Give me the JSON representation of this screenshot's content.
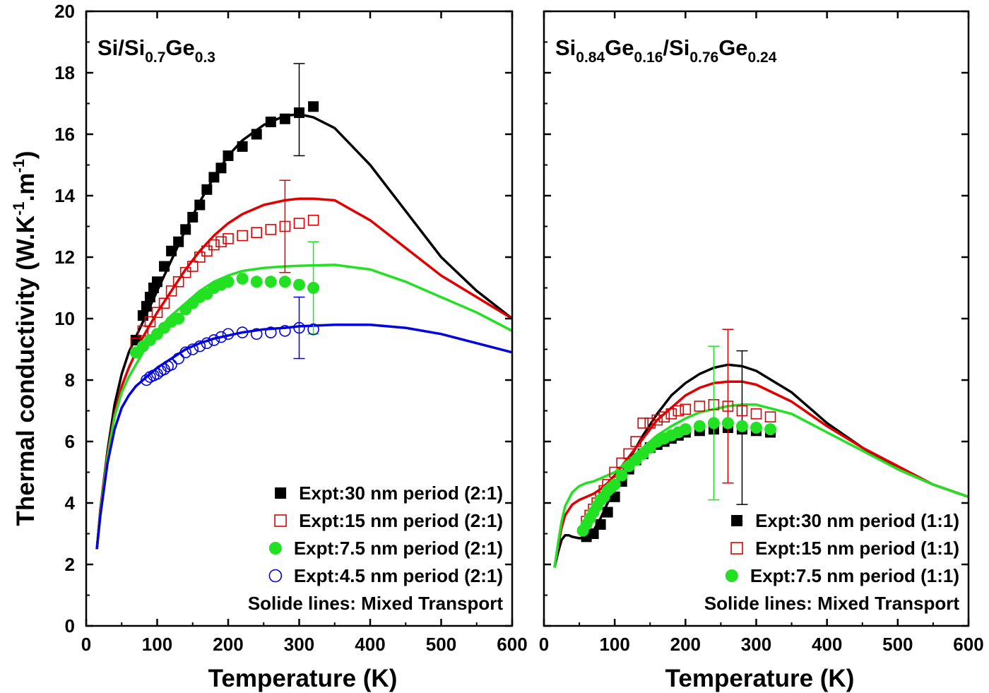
{
  "chart_data": [
    {
      "type": "scatter",
      "title_parts": [
        {
          "text": "Si/Si",
          "sub": false
        },
        {
          "text": "0.7",
          "sub": true
        },
        {
          "text": "Ge",
          "sub": false
        },
        {
          "text": "0.3",
          "sub": true
        }
      ],
      "xlabel": "Temperature (K)",
      "ylabel": "Thermal conductivity (W.K-1.m-1)",
      "ylabel_parts": [
        {
          "text": "Thermal conductivity (W.K",
          "sup": false
        },
        {
          "text": "-1",
          "sup": true
        },
        {
          "text": ".m",
          "sup": false
        },
        {
          "text": "-1",
          "sup": true
        },
        {
          "text": ")",
          "sup": false
        }
      ],
      "xlim": [
        0,
        600
      ],
      "ylim": [
        0,
        20
      ],
      "xticks": [
        0,
        100,
        200,
        300,
        400,
        500,
        600
      ],
      "yticks": [
        0,
        2,
        4,
        6,
        8,
        10,
        12,
        14,
        16,
        18,
        20
      ],
      "legend_position": "bottom-right",
      "legend_note": "Solide lines: Mixed Transport",
      "series": [
        {
          "name": "Expt:30  nm period (2:1)",
          "marker": "square-filled",
          "color": "#000000",
          "x": [
            70,
            80,
            85,
            90,
            95,
            100,
            110,
            120,
            130,
            140,
            150,
            160,
            170,
            180,
            190,
            200,
            220,
            240,
            260,
            280,
            300,
            320
          ],
          "y": [
            9.3,
            10.1,
            10.4,
            10.7,
            11.0,
            11.2,
            11.7,
            12.2,
            12.5,
            12.9,
            13.3,
            13.7,
            14.2,
            14.6,
            14.9,
            15.3,
            15.6,
            16.0,
            16.4,
            16.5,
            16.7,
            16.9
          ],
          "errorbars": [
            {
              "x": 300,
              "low": 15.3,
              "high": 18.3
            }
          ]
        },
        {
          "name": "Expt:15  nm period (2:1)",
          "marker": "square-open",
          "color": "#e00000",
          "x": [
            70,
            80,
            90,
            100,
            110,
            120,
            130,
            140,
            150,
            160,
            170,
            180,
            190,
            200,
            220,
            240,
            260,
            280,
            300,
            320
          ],
          "y": [
            9.2,
            9.6,
            9.9,
            10.2,
            10.5,
            10.9,
            11.2,
            11.5,
            11.7,
            12.0,
            12.2,
            12.4,
            12.5,
            12.6,
            12.7,
            12.8,
            12.9,
            13.0,
            13.1,
            13.2
          ],
          "errorbars": [
            {
              "x": 280,
              "low": 11.5,
              "high": 14.5
            }
          ]
        },
        {
          "name": "Expt:7.5 nm period (2:1)",
          "marker": "circle-filled",
          "color": "#22e022",
          "x": [
            70,
            80,
            90,
            100,
            110,
            120,
            130,
            140,
            150,
            160,
            170,
            180,
            190,
            200,
            220,
            240,
            260,
            280,
            300,
            320
          ],
          "y": [
            8.9,
            9.1,
            9.3,
            9.5,
            9.7,
            9.9,
            10.0,
            10.3,
            10.5,
            10.7,
            10.8,
            11.0,
            11.1,
            11.2,
            11.3,
            11.2,
            11.2,
            11.2,
            11.1,
            11.0
          ],
          "errorbars": [
            {
              "x": 320,
              "low": 9.5,
              "high": 12.5
            }
          ]
        },
        {
          "name": "Expt:4.5 nm period (2:1)",
          "marker": "circle-open",
          "color": "#0000e0",
          "x": [
            85,
            90,
            95,
            100,
            105,
            110,
            115,
            120,
            130,
            140,
            150,
            160,
            170,
            180,
            190,
            200,
            220,
            240,
            260,
            280,
            300,
            320
          ],
          "y": [
            8.0,
            8.1,
            8.15,
            8.2,
            8.3,
            8.35,
            8.45,
            8.5,
            8.7,
            8.9,
            9.0,
            9.1,
            9.2,
            9.3,
            9.4,
            9.5,
            9.55,
            9.5,
            9.55,
            9.6,
            9.7,
            9.65
          ],
          "errorbars": [
            {
              "x": 300,
              "low": 8.7,
              "high": 10.7
            }
          ]
        },
        {
          "name": "Mixed transport 30 nm",
          "style": "line",
          "color": "#000000",
          "x": [
            15,
            20,
            30,
            40,
            50,
            60,
            70,
            80,
            90,
            100,
            120,
            140,
            160,
            180,
            200,
            220,
            250,
            280,
            300,
            320,
            350,
            400,
            450,
            500,
            550,
            600
          ],
          "y": [
            2.5,
            3.8,
            5.7,
            7.2,
            8.2,
            8.9,
            9.4,
            9.9,
            10.4,
            10.9,
            11.9,
            12.9,
            13.8,
            14.6,
            15.3,
            15.8,
            16.3,
            16.6,
            16.65,
            16.55,
            16.2,
            15.0,
            13.5,
            12.0,
            10.9,
            10.0
          ]
        },
        {
          "name": "Mixed transport 15 nm",
          "style": "line",
          "color": "#e00000",
          "x": [
            15,
            20,
            30,
            40,
            50,
            60,
            70,
            80,
            90,
            100,
            120,
            140,
            160,
            180,
            200,
            220,
            250,
            280,
            300,
            320,
            350,
            400,
            450,
            500,
            550,
            600
          ],
          "y": [
            2.5,
            3.8,
            5.6,
            6.9,
            7.8,
            8.4,
            8.9,
            9.4,
            9.8,
            10.2,
            10.9,
            11.6,
            12.2,
            12.7,
            13.1,
            13.4,
            13.7,
            13.85,
            13.9,
            13.9,
            13.85,
            13.2,
            12.3,
            11.4,
            10.7,
            10.0
          ]
        },
        {
          "name": "Mixed transport 7.5 nm",
          "style": "line",
          "color": "#22e022",
          "x": [
            15,
            20,
            30,
            40,
            50,
            60,
            70,
            80,
            90,
            100,
            120,
            140,
            160,
            180,
            200,
            220,
            250,
            280,
            300,
            350,
            400,
            450,
            500,
            550,
            600
          ],
          "y": [
            2.5,
            3.7,
            5.5,
            6.8,
            7.6,
            8.1,
            8.5,
            8.9,
            9.3,
            9.6,
            10.1,
            10.5,
            10.9,
            11.2,
            11.4,
            11.55,
            11.65,
            11.7,
            11.72,
            11.75,
            11.6,
            11.2,
            10.7,
            10.2,
            9.6
          ]
        },
        {
          "name": "Mixed transport 4.5 nm",
          "style": "line",
          "color": "#0000e0",
          "x": [
            15,
            20,
            30,
            40,
            50,
            60,
            70,
            80,
            90,
            100,
            120,
            140,
            160,
            180,
            200,
            220,
            250,
            280,
            300,
            350,
            400,
            450,
            500,
            550,
            600
          ],
          "y": [
            2.5,
            3.6,
            5.3,
            6.4,
            7.1,
            7.5,
            7.8,
            8.0,
            8.2,
            8.4,
            8.7,
            9.0,
            9.2,
            9.35,
            9.45,
            9.55,
            9.65,
            9.7,
            9.75,
            9.8,
            9.8,
            9.7,
            9.5,
            9.2,
            8.9
          ]
        }
      ]
    },
    {
      "type": "scatter",
      "title_parts": [
        {
          "text": "Si",
          "sub": false
        },
        {
          "text": "0.84",
          "sub": true
        },
        {
          "text": "Ge",
          "sub": false
        },
        {
          "text": "0.16",
          "sub": true
        },
        {
          "text": "/Si",
          "sub": false
        },
        {
          "text": "0.76",
          "sub": true
        },
        {
          "text": "Ge",
          "sub": false
        },
        {
          "text": "0.24",
          "sub": true
        }
      ],
      "xlabel": "Temperature (K)",
      "xlim": [
        0,
        600
      ],
      "ylim": [
        0,
        20
      ],
      "xticks": [
        0,
        100,
        200,
        300,
        400,
        500,
        600
      ],
      "legend_position": "bottom-right",
      "legend_note": "Solide lines: Mixed Transport",
      "series": [
        {
          "name": "Expt:30  nm period (1:1)",
          "marker": "square-filled",
          "color": "#000000",
          "x": [
            60,
            70,
            80,
            90,
            100,
            110,
            120,
            130,
            140,
            150,
            160,
            170,
            180,
            190,
            200,
            220,
            240,
            260,
            280,
            300,
            320
          ],
          "y": [
            2.9,
            3.0,
            3.3,
            3.7,
            4.2,
            4.7,
            5.1,
            5.4,
            5.6,
            5.8,
            5.9,
            6.0,
            6.1,
            6.2,
            6.3,
            6.35,
            6.4,
            6.45,
            6.4,
            6.35,
            6.3
          ],
          "errorbars": [
            {
              "x": 280,
              "low": 3.95,
              "high": 8.95
            }
          ]
        },
        {
          "name": "Expt:15  nm period (1:1)",
          "marker": "square-open",
          "color": "#e00000",
          "x": [
            60,
            65,
            70,
            75,
            80,
            85,
            90,
            100,
            110,
            120,
            130,
            140,
            150,
            160,
            170,
            180,
            190,
            200,
            220,
            240,
            260,
            280,
            300,
            320
          ],
          "y": [
            3.4,
            3.6,
            3.8,
            4.0,
            4.2,
            4.4,
            4.6,
            5.0,
            5.3,
            5.6,
            6.0,
            6.6,
            6.6,
            6.7,
            6.8,
            6.9,
            7.0,
            7.05,
            7.15,
            7.2,
            7.15,
            7.0,
            6.9,
            6.8
          ],
          "errorbars": [
            {
              "x": 260,
              "low": 4.65,
              "high": 9.65
            }
          ]
        },
        {
          "name": "Expt:7.5 nm period (1:1)",
          "marker": "circle-filled",
          "color": "#22e022",
          "x": [
            55,
            60,
            65,
            70,
            75,
            80,
            85,
            90,
            95,
            100,
            110,
            120,
            130,
            140,
            150,
            160,
            170,
            180,
            190,
            200,
            220,
            240,
            260,
            280,
            300,
            320
          ],
          "y": [
            3.1,
            3.3,
            3.5,
            3.7,
            3.9,
            4.1,
            4.2,
            4.4,
            4.5,
            4.6,
            4.9,
            5.2,
            5.4,
            5.6,
            5.8,
            6.0,
            6.1,
            6.2,
            6.3,
            6.4,
            6.5,
            6.6,
            6.6,
            6.5,
            6.45,
            6.4
          ],
          "errorbars": [
            {
              "x": 240,
              "low": 4.1,
              "high": 9.1
            }
          ]
        },
        {
          "name": "Mixed transport 30 nm",
          "style": "line",
          "color": "#000000",
          "x": [
            15,
            20,
            25,
            30,
            35,
            40,
            50,
            60,
            70,
            80,
            90,
            100,
            120,
            140,
            160,
            180,
            200,
            220,
            240,
            260,
            280,
            300,
            350,
            400,
            450,
            500,
            550,
            600
          ],
          "y": [
            1.9,
            2.4,
            2.8,
            2.95,
            2.95,
            2.9,
            2.85,
            2.9,
            3.1,
            3.5,
            4.0,
            4.5,
            5.4,
            6.2,
            6.9,
            7.5,
            7.9,
            8.2,
            8.4,
            8.5,
            8.45,
            8.3,
            7.6,
            6.6,
            5.8,
            5.1,
            4.6,
            4.2
          ]
        },
        {
          "name": "Mixed transport 15 nm",
          "style": "line",
          "color": "#e00000",
          "x": [
            15,
            20,
            25,
            30,
            40,
            50,
            60,
            70,
            80,
            90,
            100,
            120,
            140,
            160,
            180,
            200,
            220,
            240,
            260,
            280,
            300,
            350,
            400,
            450,
            500,
            550,
            600
          ],
          "y": [
            1.9,
            2.6,
            3.2,
            3.6,
            3.95,
            4.1,
            4.2,
            4.3,
            4.45,
            4.65,
            4.9,
            5.5,
            6.1,
            6.7,
            7.1,
            7.5,
            7.75,
            7.9,
            7.95,
            7.95,
            7.85,
            7.3,
            6.5,
            5.8,
            5.2,
            4.6,
            4.2
          ]
        },
        {
          "name": "Mixed transport 7.5 nm",
          "style": "line",
          "color": "#22e022",
          "x": [
            15,
            20,
            25,
            30,
            40,
            50,
            60,
            70,
            80,
            90,
            100,
            120,
            140,
            160,
            180,
            200,
            220,
            240,
            260,
            280,
            300,
            350,
            400,
            450,
            500,
            550,
            600
          ],
          "y": [
            1.9,
            2.7,
            3.4,
            3.9,
            4.35,
            4.55,
            4.65,
            4.7,
            4.8,
            4.9,
            5.0,
            5.4,
            5.8,
            6.2,
            6.5,
            6.75,
            6.95,
            7.05,
            7.15,
            7.2,
            7.2,
            6.9,
            6.3,
            5.7,
            5.1,
            4.6,
            4.2
          ]
        }
      ]
    }
  ]
}
